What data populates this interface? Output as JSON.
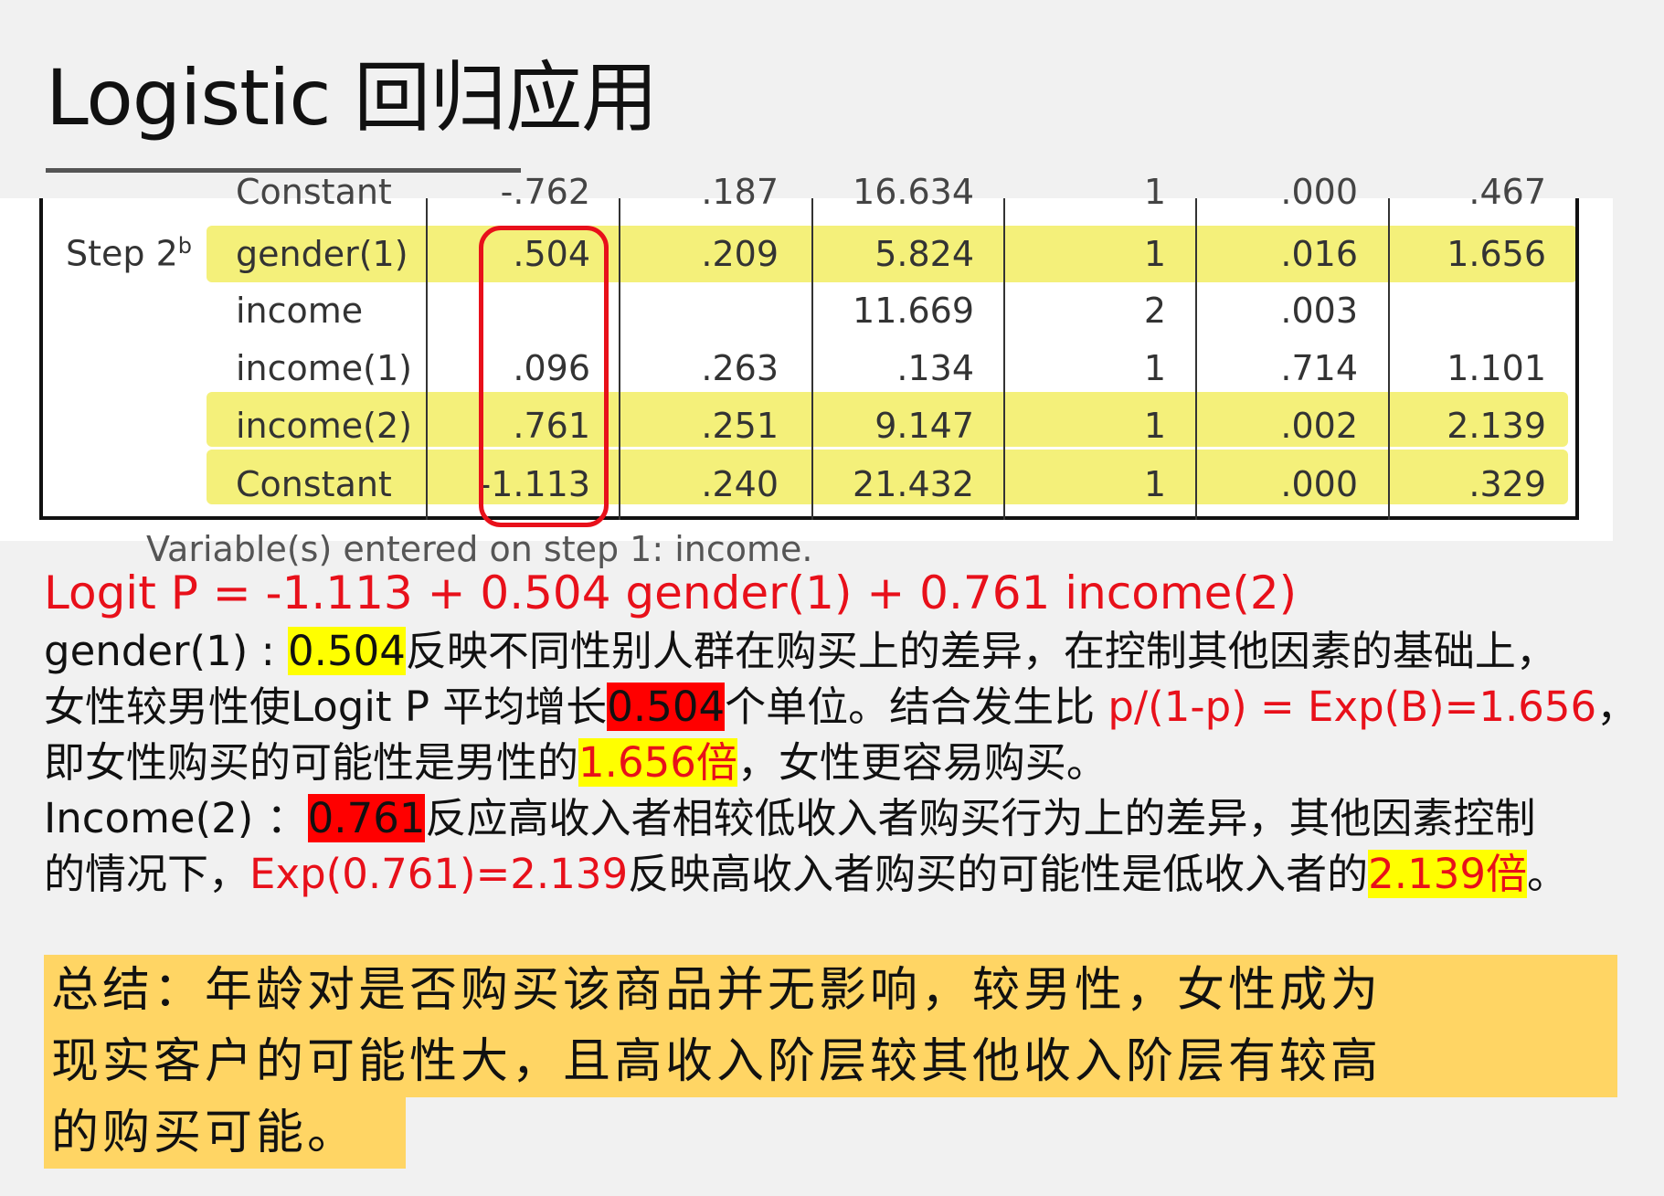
{
  "title": "Logistic 回归应用",
  "table": {
    "step_label": "Step 2",
    "step_sup": "b",
    "top_cut_row": [
      "Constant",
      "-.762",
      ".187",
      "16.634",
      "1",
      ".000",
      ".467"
    ],
    "rows": [
      {
        "name": "gender(1)",
        "B": ".504",
        "SE": ".209",
        "Wald": "5.824",
        "df": "1",
        "Sig": ".016",
        "ExpB": "1.656",
        "highlight": true
      },
      {
        "name": "income",
        "B": "",
        "SE": "",
        "Wald": "11.669",
        "df": "2",
        "Sig": ".003",
        "ExpB": "",
        "highlight": false
      },
      {
        "name": "income(1)",
        "B": ".096",
        "SE": ".263",
        "Wald": ".134",
        "df": "1",
        "Sig": ".714",
        "ExpB": "1.101",
        "highlight": false
      },
      {
        "name": "income(2)",
        "B": ".761",
        "SE": ".251",
        "Wald": "9.147",
        "df": "1",
        "Sig": ".002",
        "ExpB": "2.139",
        "highlight": true
      },
      {
        "name": "Constant",
        "B": "-1.113",
        "SE": ".240",
        "Wald": "21.432",
        "df": "1",
        "Sig": ".000",
        "ExpB": ".329",
        "highlight": true
      }
    ],
    "bottom_cut_text": "Variable(s) entered on step 1: income."
  },
  "equation": "Logit P = -1.113 + 0.504 gender(1) + 0.761 income(2)",
  "explanation": {
    "l1_a": "gender(1) : ",
    "l1_b": "0.504",
    "l1_c": "反映不同性别人群在购买上的差异，在控制其他因素的基础上，",
    "l2_a": "女性较男性使Logit P 平均增长",
    "l2_b": "0.504",
    "l2_c": "个单位。结合发生比 ",
    "l2_d": "p/(1-p) = Exp(B)=1.656",
    "l2_e": "，",
    "l3_a": "即女性购买的可能性是男性的",
    "l3_b": "1.656倍",
    "l3_c": "，女性更容易购买。",
    "l4_a": "Income(2) ：",
    "l4_b": "0.761",
    "l4_c": "反应高收入者相较低收入者购买行为上的差异，其他因素控制",
    "l5_a": "的情况下，",
    "l5_b": "Exp(0.761)=2.139",
    "l5_c": "反映高收入者购买的可能性是低收入者的",
    "l5_d": "2.139倍",
    "l5_e": "。"
  },
  "summary": {
    "line1": "总结：年龄对是否购买该商品并无影响，较男性，女性成为",
    "line2": "现实客户的可能性大，且高收入阶层较其他收入阶层有较高",
    "line3": "的购买可能。"
  },
  "colors": {
    "accent_red": "#e8101a",
    "row_highlight": "#f4f07a",
    "text_highlight_yellow": "#ffff00",
    "text_highlight_red": "#ff0000",
    "summary_background": "#ffd564"
  }
}
